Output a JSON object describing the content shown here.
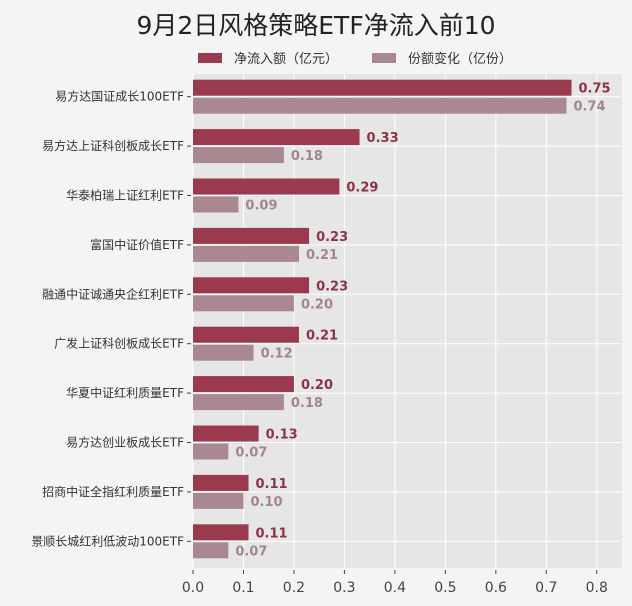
{
  "chart_data": {
    "type": "bar",
    "orientation": "horizontal",
    "title": "9月2日风格策略ETF净流入前10",
    "categories": [
      "易方达国证成长100ETF",
      "易方达上证科创板成长ETF",
      "华泰柏瑞上证红利ETF",
      "富国中证价值ETF",
      "融通中证诚通央企红利ETF",
      "广发上证科创板成长ETF",
      "华夏中证红利质量ETF",
      "易方达创业板成长ETF",
      "招商中证全指红利质量ETF",
      "景顺长城红利低波动100ETF"
    ],
    "series": [
      {
        "name": "净流入额（亿元）",
        "color": "#9b3a4e",
        "values": [
          0.75,
          0.33,
          0.29,
          0.23,
          0.23,
          0.21,
          0.2,
          0.13,
          0.11,
          0.11
        ],
        "labels": [
          "0.75",
          "0.33",
          "0.29",
          "0.23",
          "0.23",
          "0.21",
          "0.20",
          "0.13",
          "0.11",
          "0.11"
        ]
      },
      {
        "name": "份额变化（亿份）",
        "color": "#a98891",
        "values": [
          0.74,
          0.18,
          0.09,
          0.21,
          0.2,
          0.12,
          0.18,
          0.07,
          0.1,
          0.07
        ],
        "labels": [
          "0.74",
          "0.18",
          "0.09",
          "0.21",
          "0.20",
          "0.12",
          "0.18",
          "0.07",
          "0.10",
          "0.07"
        ]
      }
    ],
    "xticks": [
      "0.0",
      "0.1",
      "0.2",
      "0.3",
      "0.4",
      "0.5",
      "0.6",
      "0.7",
      "0.8"
    ],
    "xlim": [
      0,
      0.85
    ],
    "xlabel": "",
    "ylabel": "",
    "grid": true,
    "legend": "top"
  }
}
